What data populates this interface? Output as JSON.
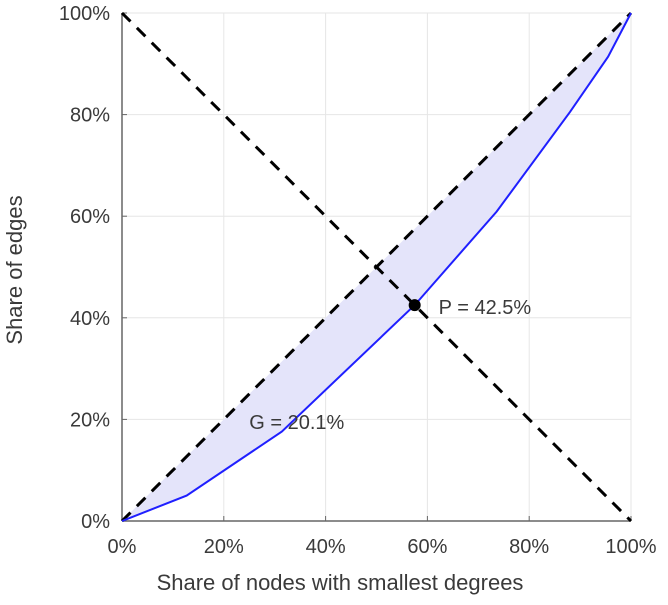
{
  "chart_data": {
    "type": "line",
    "title": "",
    "xlabel": "Share of nodes with smallest degrees",
    "ylabel": "Share of edges",
    "xlim": [
      0,
      100
    ],
    "ylim": [
      0,
      100
    ],
    "grid": true,
    "x_ticks": [
      "0%",
      "20%",
      "40%",
      "60%",
      "80%",
      "100%"
    ],
    "y_ticks": [
      "0%",
      "20%",
      "40%",
      "60%",
      "80%",
      "100%"
    ],
    "series": [
      {
        "name": "Lorenz curve",
        "color": "#1f1fff",
        "x": [
          0,
          12.7,
          31.4,
          57.5,
          73.6,
          88,
          95.5,
          100
        ],
        "y": [
          0,
          5.0,
          17.6,
          42.5,
          60.9,
          80.5,
          91.4,
          100
        ]
      },
      {
        "name": "Equality line",
        "color": "#000000",
        "style": "dashed",
        "x": [
          0,
          100
        ],
        "y": [
          0,
          100
        ]
      },
      {
        "name": "Anti-diagonal",
        "color": "#000000",
        "style": "dashed",
        "x": [
          0,
          100
        ],
        "y": [
          100,
          0
        ]
      }
    ],
    "fill_color": "#e4e4fa",
    "point": {
      "x": 57.5,
      "y": 42.5,
      "label": "P = 42.5%"
    },
    "annotations": [
      {
        "text": "G = 20.1%",
        "x": 25,
        "y": 19.5
      }
    ]
  }
}
